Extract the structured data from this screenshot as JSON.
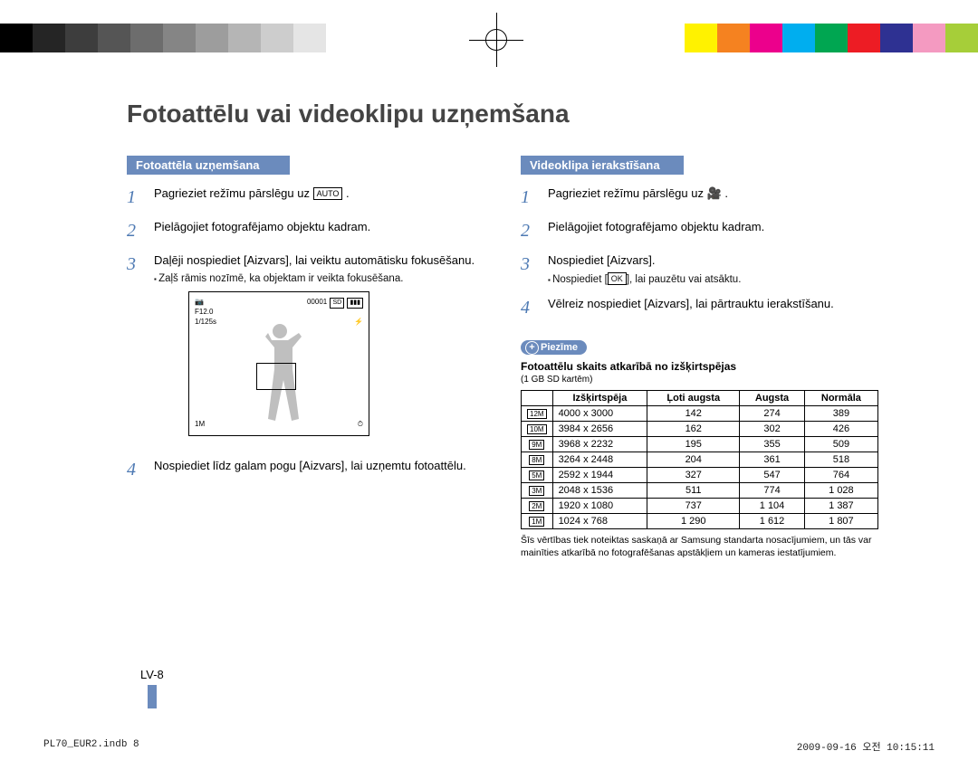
{
  "registration_colors_left": [
    "#000000",
    "#252525",
    "#3d3d3d",
    "#555555",
    "#6d6d6d",
    "#858585",
    "#9d9d9d",
    "#b5b5b5",
    "#cdcdcd",
    "#e5e5e5"
  ],
  "registration_colors_right": [
    "#ffffff",
    "#fff200",
    "#f58220",
    "#ec008c",
    "#00aeef",
    "#00a651",
    "#ed1c24",
    "#2e3192",
    "#f49ac1",
    "#a6ce39"
  ],
  "title": "Fotoattēlu vai videoklipu uzņemšana",
  "left": {
    "header": "Fotoattēla uzņemšana",
    "step1": "Pagrieziet režīmu pārslēgu uz ",
    "step1_icon": "AUTO",
    "step2": "Pielāgojiet fotografējamo objektu kadram.",
    "step3": "Daļēji nospiediet [Aizvars], lai veiktu automātisku fokusēšanu.",
    "step3_sub": "Zaļš rāmis nozīmē, ka objektam ir veikta fokusēšana.",
    "step4": "Nospiediet līdz galam pogu [Aizvars], lai uzņemtu fotoattēlu.",
    "lcd": {
      "tl_icon": "📷",
      "tl_line1": "F12.0",
      "tl_line2": "1/125s",
      "tr_line1": "00001",
      "tr_line2": "⚡",
      "tr_badge1": "SD",
      "tr_badge2": "▮▮▮",
      "bl": "1M",
      "br": "⏱"
    }
  },
  "right": {
    "header": "Videoklipa ierakstīšana",
    "step1": "Pagrieziet režīmu pārslēgu uz ",
    "step1_icon": "🎥",
    "step2": "Pielāgojiet fotografējamo objektu kadram.",
    "step3": "Nospiediet [Aizvars].",
    "step3_sub_pre": "Nospiediet [",
    "step3_sub_icon": "OK",
    "step3_sub_post": "], lai pauzētu vai atsāktu.",
    "step4": "Vēlreiz nospiediet [Aizvars], lai pārtrauktu ierakstīšanu.",
    "note_label": "Piezīme",
    "note_title": "Fotoattēlu skaits atkarībā no izšķirtspējas",
    "note_small": "(1 GB SD kartēm)",
    "table": {
      "columns": [
        "Izšķirtspēja",
        "Ļoti augsta",
        "Augsta",
        "Normāla"
      ],
      "rows": [
        {
          "icon": "12M",
          "res": "4000 x 3000",
          "c1": "142",
          "c2": "274",
          "c3": "389"
        },
        {
          "icon": "10M",
          "res": "3984 x 2656",
          "c1": "162",
          "c2": "302",
          "c3": "426"
        },
        {
          "icon": "9M",
          "res": "3968 x 2232",
          "c1": "195",
          "c2": "355",
          "c3": "509"
        },
        {
          "icon": "8M",
          "res": "3264 x 2448",
          "c1": "204",
          "c2": "361",
          "c3": "518"
        },
        {
          "icon": "5M",
          "res": "2592 x 1944",
          "c1": "327",
          "c2": "547",
          "c3": "764"
        },
        {
          "icon": "3M",
          "res": "2048 x 1536",
          "c1": "511",
          "c2": "774",
          "c3": "1 028"
        },
        {
          "icon": "2M",
          "res": "1920 x 1080",
          "c1": "737",
          "c2": "1 104",
          "c3": "1 387"
        },
        {
          "icon": "1M",
          "res": "1024 x 768",
          "c1": "1 290",
          "c2": "1 612",
          "c3": "1 807"
        }
      ]
    },
    "footnote": "Šīs vērtības tiek noteiktas saskaņā ar Samsung standarta nosacījumiem, un tās var mainīties atkarībā no fotografēšanas apstākļiem un kameras iestatījumiem."
  },
  "page_num": "LV-8",
  "footer_left": "PL70_EUR2.indb   8",
  "footer_right": "2009-09-16   오전 10:15:11",
  "colors": {
    "accent": "#6b8bbd",
    "stepnum": "#4d79b3",
    "title": "#444444"
  }
}
